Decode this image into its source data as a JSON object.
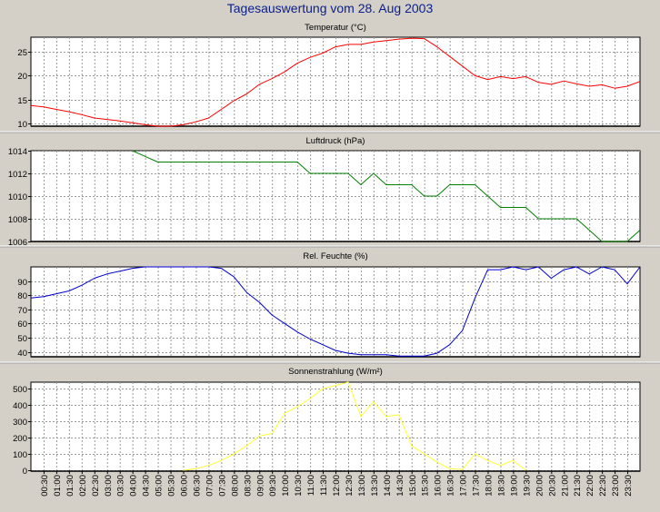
{
  "title": "Tagesauswertung vom 28. Aug 2003",
  "colors": {
    "background": "#d4d0c8",
    "plot_background": "#ffffff",
    "grid": "#9a9a9a",
    "title": "#0a1e8c"
  },
  "x_labels": [
    "00:30",
    "01:00",
    "01:30",
    "02:00",
    "02:30",
    "03:00",
    "03:30",
    "04:00",
    "04:30",
    "05:00",
    "05:30",
    "06:00",
    "06:30",
    "07:00",
    "07:30",
    "08:00",
    "08:30",
    "09:00",
    "09:30",
    "10:00",
    "10:30",
    "11:00",
    "11:30",
    "12:00",
    "12:30",
    "13:00",
    "13:30",
    "14:00",
    "14:30",
    "15:00",
    "15:30",
    "16:00",
    "16:30",
    "17:00",
    "17:30",
    "18:00",
    "18:30",
    "19:00",
    "19:30",
    "20:00",
    "20:30",
    "21:00",
    "21:30",
    "22:00",
    "22:30",
    "23:00",
    "23:30"
  ],
  "chart_data": [
    {
      "type": "line",
      "title": "Temperatur (°C)",
      "color": "#ff0000",
      "grid": true,
      "ylim": [
        9.5,
        28
      ],
      "yticks": [
        10,
        15,
        20,
        25
      ],
      "x": [
        "00:00",
        "00:30",
        "01:00",
        "01:30",
        "02:00",
        "02:30",
        "03:00",
        "03:30",
        "04:00",
        "04:30",
        "05:00",
        "05:30",
        "06:00",
        "06:30",
        "07:00",
        "07:30",
        "08:00",
        "08:30",
        "09:00",
        "09:30",
        "10:00",
        "10:30",
        "11:00",
        "11:30",
        "12:00",
        "12:30",
        "13:00",
        "13:30",
        "14:00",
        "14:30",
        "15:00",
        "15:30",
        "16:00",
        "16:30",
        "17:00",
        "17:30",
        "18:00",
        "18:30",
        "19:00",
        "19:30",
        "20:00",
        "20:30",
        "21:00",
        "21:30",
        "22:00",
        "22:30",
        "23:00",
        "23:30",
        "24:00"
      ],
      "values": [
        13.8,
        13.5,
        13.0,
        12.5,
        11.9,
        11.2,
        10.9,
        10.6,
        10.2,
        9.8,
        9.5,
        9.5,
        9.8,
        10.4,
        11.2,
        13.0,
        14.8,
        16.2,
        18.2,
        19.4,
        20.8,
        22.6,
        23.8,
        24.7,
        26.0,
        26.5,
        26.5,
        27.0,
        27.3,
        27.6,
        27.8,
        27.7,
        26.0,
        24.0,
        22.0,
        20.0,
        19.2,
        19.8,
        19.4,
        19.8,
        18.6,
        18.2,
        18.9,
        18.3,
        17.8,
        18.1,
        17.4,
        17.8,
        18.8
      ]
    },
    {
      "type": "line",
      "title": "Luftdruck (hPa)",
      "color": "#008000",
      "grid": true,
      "ylim": [
        1006,
        1014
      ],
      "yticks": [
        1006,
        1008,
        1010,
        1012,
        1014
      ],
      "x": [
        "04:00",
        "04:30",
        "05:00",
        "05:30",
        "06:00",
        "06:30",
        "07:00",
        "07:30",
        "08:00",
        "08:30",
        "09:00",
        "09:30",
        "10:00",
        "10:30",
        "11:00",
        "11:30",
        "12:00",
        "12:30",
        "13:00",
        "13:30",
        "14:00",
        "14:30",
        "15:00",
        "15:30",
        "16:00",
        "16:30",
        "17:00",
        "17:30",
        "18:00",
        "18:30",
        "19:00",
        "19:30",
        "20:00",
        "20:30",
        "21:00",
        "21:30",
        "22:00",
        "22:30",
        "23:00",
        "23:30",
        "24:00"
      ],
      "values": [
        1014,
        1013.5,
        1013,
        1013,
        1013,
        1013,
        1013,
        1013,
        1013,
        1013,
        1013,
        1013,
        1013,
        1013,
        1012,
        1012,
        1012,
        1012,
        1011,
        1012,
        1011,
        1011,
        1011,
        1010,
        1010,
        1011,
        1011,
        1011,
        1010,
        1009,
        1009,
        1009,
        1008,
        1008,
        1008,
        1008,
        1007,
        1006,
        1006,
        1006,
        1007
      ]
    },
    {
      "type": "line",
      "title": "Rel. Feuchte (%)",
      "color": "#0000d0",
      "grid": true,
      "ylim": [
        36.5,
        100
      ],
      "yticks": [
        40,
        50,
        60,
        70,
        80,
        90
      ],
      "x": [
        "00:00",
        "00:30",
        "01:00",
        "01:30",
        "02:00",
        "02:30",
        "03:00",
        "03:30",
        "04:00",
        "04:30",
        "05:00",
        "05:30",
        "06:00",
        "06:30",
        "07:00",
        "07:30",
        "08:00",
        "08:30",
        "09:00",
        "09:30",
        "10:00",
        "10:30",
        "11:00",
        "11:30",
        "12:00",
        "12:30",
        "13:00",
        "13:30",
        "14:00",
        "14:30",
        "15:00",
        "15:30",
        "16:00",
        "16:30",
        "17:00",
        "17:30",
        "18:00",
        "18:30",
        "19:00",
        "19:30",
        "20:00",
        "20:30",
        "21:00",
        "21:30",
        "22:00",
        "22:30",
        "23:00",
        "23:30",
        "24:00"
      ],
      "values": [
        78,
        79,
        81,
        83,
        87,
        92,
        95,
        97,
        99,
        100,
        100,
        100,
        100,
        100,
        100,
        99,
        93,
        82,
        75,
        66,
        60,
        54,
        49,
        45,
        41,
        39,
        38,
        38,
        38,
        37,
        37,
        37,
        39,
        45,
        55,
        78,
        98,
        98,
        100,
        98,
        100,
        92,
        98,
        100,
        95,
        100,
        98,
        88,
        100
      ]
    },
    {
      "type": "line",
      "title": "Sonnenstrahlung (W/m²)",
      "color": "#ffff33",
      "grid": true,
      "ylim": [
        -5,
        540
      ],
      "yticks": [
        0,
        100,
        200,
        300,
        400,
        500
      ],
      "x": [
        "06:00",
        "06:30",
        "07:00",
        "07:30",
        "08:00",
        "08:30",
        "09:00",
        "09:30",
        "10:00",
        "10:30",
        "11:00",
        "11:30",
        "12:00",
        "12:30",
        "13:00",
        "13:30",
        "14:00",
        "14:30",
        "15:00",
        "15:30",
        "16:00",
        "16:30",
        "17:00",
        "17:30",
        "18:00",
        "18:30",
        "19:00",
        "19:30"
      ],
      "values": [
        0,
        10,
        30,
        60,
        100,
        150,
        210,
        225,
        350,
        390,
        440,
        500,
        520,
        540,
        330,
        420,
        330,
        340,
        150,
        100,
        50,
        10,
        5,
        100,
        60,
        30,
        60,
        0
      ]
    }
  ]
}
